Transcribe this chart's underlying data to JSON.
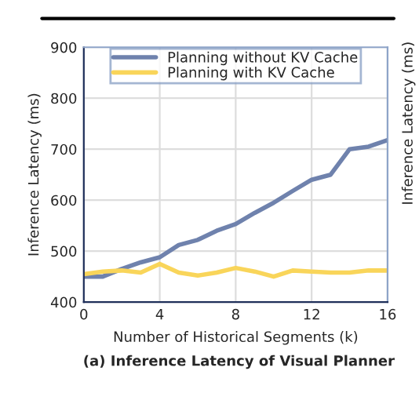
{
  "chart_data": {
    "type": "line",
    "title": "(a) Inference Latency of Visual Planner",
    "xlabel": "Number of Historical Segments (k)",
    "ylabel": "Inference Latency (ms)",
    "x": [
      0,
      1,
      2,
      3,
      4,
      5,
      6,
      7,
      8,
      9,
      10,
      11,
      12,
      13,
      14,
      15,
      16
    ],
    "series": [
      {
        "name": "Planning without KV Cache",
        "color": "#6f82ad",
        "values": [
          450,
          450,
          465,
          478,
          488,
          512,
          522,
          540,
          553,
          575,
          595,
          618,
          640,
          650,
          700,
          705,
          718
        ]
      },
      {
        "name": "Planning with KV Cache",
        "color": "#f9d55a",
        "values": [
          455,
          460,
          462,
          458,
          475,
          458,
          452,
          458,
          467,
          460,
          450,
          462,
          460,
          458,
          458,
          462,
          462
        ]
      }
    ],
    "xlim": [
      0,
      16
    ],
    "xticks": [
      0,
      4,
      8,
      12,
      16
    ],
    "ylim": [
      400,
      900
    ],
    "yticks": [
      400,
      500,
      600,
      700,
      800,
      900
    ],
    "grid": true,
    "legend": "top",
    "marker": "none",
    "line_style": "solid",
    "annotations": [
      "Inference Latency (ms)"
    ]
  }
}
